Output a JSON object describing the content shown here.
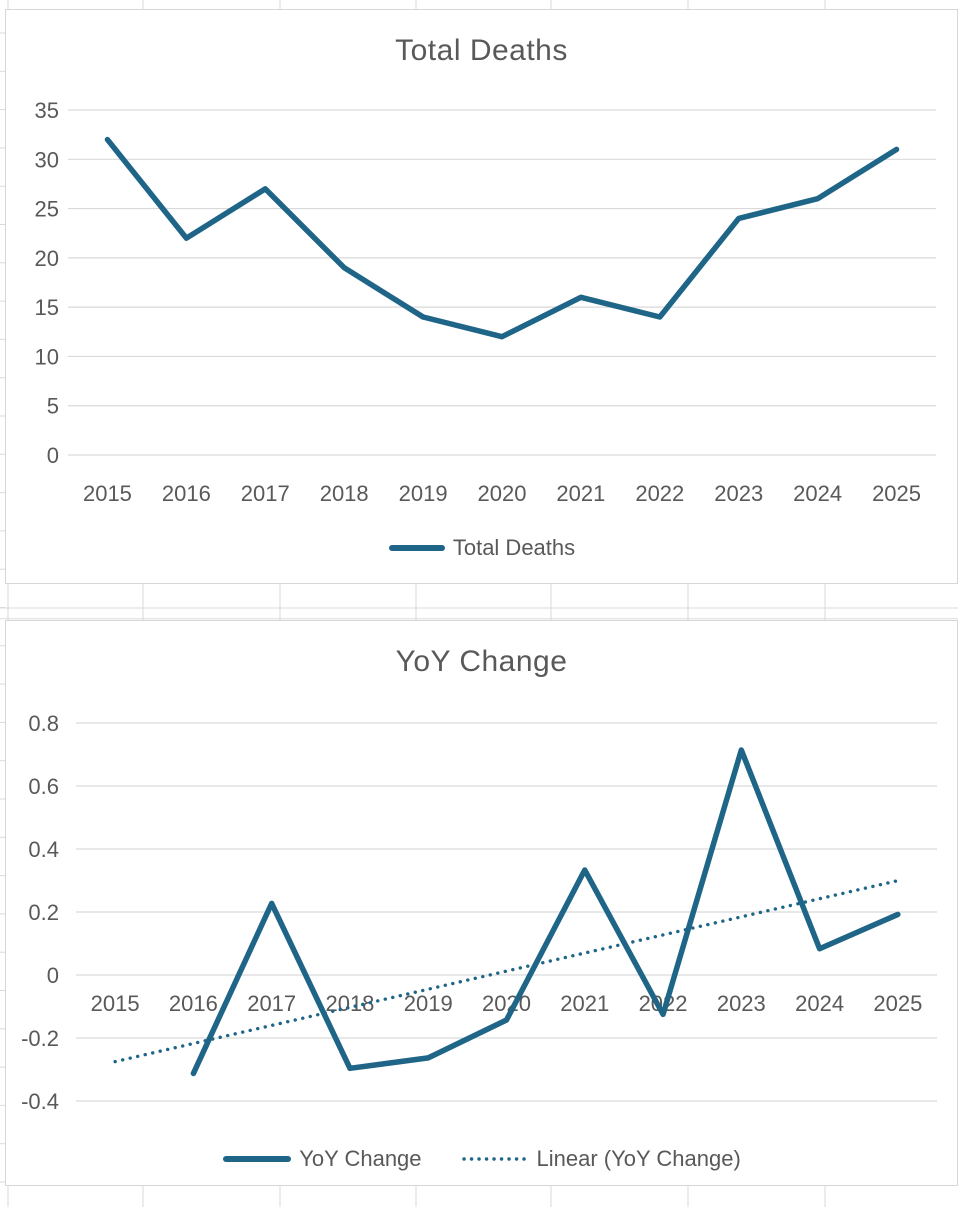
{
  "colors": {
    "accent": "#1F6587",
    "gridline": "#D9D9D9",
    "text": "#595959",
    "chart_border": "#D7D7D7",
    "chart_background": "#FFFFFF",
    "sheet_line": "#DADADA"
  },
  "chart_data": [
    {
      "type": "line",
      "title": "Total Deaths",
      "categories": [
        "2015",
        "2016",
        "2017",
        "2018",
        "2019",
        "2020",
        "2021",
        "2022",
        "2023",
        "2024",
        "2025"
      ],
      "series": [
        {
          "name": "Total Deaths",
          "style": "solid",
          "values": [
            32,
            22,
            27,
            19,
            14,
            12,
            16,
            14,
            24,
            26,
            31
          ]
        }
      ],
      "y_axis": {
        "ticks": [
          "35",
          "30",
          "25",
          "20",
          "15",
          "10",
          "5",
          "0"
        ],
        "range": [
          0,
          35
        ]
      },
      "xlabel": "",
      "ylabel": "",
      "grid": true,
      "legend_position": "bottom"
    },
    {
      "type": "line",
      "title": "YoY Change",
      "categories": [
        "2015",
        "2016",
        "2017",
        "2018",
        "2019",
        "2020",
        "2021",
        "2022",
        "2023",
        "2024",
        "2025"
      ],
      "series": [
        {
          "name": "YoY Change",
          "style": "solid",
          "values": [
            null,
            -0.3125,
            0.2273,
            -0.2963,
            -0.2632,
            -0.1429,
            0.3333,
            -0.125,
            0.7143,
            0.0833,
            0.1923
          ]
        }
      ],
      "trendline": {
        "name": "Linear (YoY Change)",
        "style": "dotted",
        "start_value": -0.2749,
        "end_value": 0.2996
      },
      "y_axis": {
        "ticks": [
          "0.8",
          "0.6",
          "0.4",
          "0.2",
          "0",
          "-0.2",
          "-0.4"
        ],
        "range": [
          -0.4,
          0.8
        ]
      },
      "xlabel": "",
      "ylabel": "",
      "grid": true,
      "legend_position": "bottom"
    }
  ]
}
